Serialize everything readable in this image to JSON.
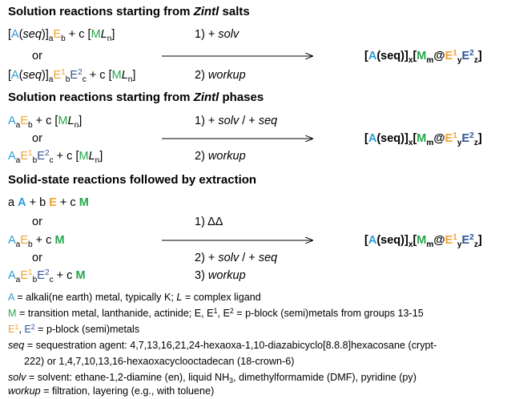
{
  "palette": {
    "blue": "#2f9bd7",
    "orange": "#f0a22e",
    "green": "#22a74a",
    "navy": "#2f5597",
    "black": "#000000"
  },
  "sections": [
    {
      "heading": [
        {
          "text": "Solution reactions starting from "
        },
        {
          "text": "Zintl",
          "format": "i"
        },
        {
          "text": " salts"
        }
      ],
      "reactants": [
        [
          {
            "text": "["
          },
          {
            "text": "A",
            "color": "blue"
          },
          {
            "text": "("
          },
          {
            "text": "seq",
            "format": "i"
          },
          {
            "text": ")]"
          },
          {
            "text": "a",
            "format": "sub"
          },
          {
            "text": "E",
            "color": "orange"
          },
          {
            "text": "b",
            "format": "sub"
          },
          {
            "text": " + c ["
          },
          {
            "text": "M",
            "color": "green"
          },
          {
            "text": "L",
            "format": "i"
          },
          {
            "text": "n",
            "format": "sub"
          },
          {
            "text": "]"
          }
        ],
        [
          {
            "text": "or"
          }
        ],
        [
          {
            "text": "["
          },
          {
            "text": "A",
            "color": "blue"
          },
          {
            "text": "("
          },
          {
            "text": "seq",
            "format": "i"
          },
          {
            "text": ")]"
          },
          {
            "text": "a",
            "format": "sub"
          },
          {
            "text": "E",
            "color": "orange"
          },
          {
            "text": "1",
            "format": "sup",
            "color": "orange"
          },
          {
            "text": "b",
            "format": "sub"
          },
          {
            "text": "E",
            "color": "navy"
          },
          {
            "text": "2",
            "format": "sup",
            "color": "navy"
          },
          {
            "text": "c",
            "format": "sub"
          },
          {
            "text": " + c ["
          },
          {
            "text": "M",
            "color": "green"
          },
          {
            "text": "L",
            "format": "i"
          },
          {
            "text": "n",
            "format": "sub"
          },
          {
            "text": "]"
          }
        ]
      ],
      "steps": [
        [
          {
            "text": "1) + "
          },
          {
            "text": "solv",
            "format": "i"
          }
        ],
        [
          {
            "text": "2) "
          },
          {
            "text": "workup",
            "format": "i"
          }
        ]
      ],
      "product": [
        {
          "text": "["
        },
        {
          "text": "A",
          "color": "blue"
        },
        {
          "text": "(seq)]"
        },
        {
          "text": "x",
          "format": "sub"
        },
        {
          "text": "["
        },
        {
          "text": "M",
          "color": "green"
        },
        {
          "text": "m",
          "format": "sub"
        },
        {
          "text": "@"
        },
        {
          "text": "E",
          "color": "orange"
        },
        {
          "text": "1",
          "format": "sup",
          "color": "orange"
        },
        {
          "text": "y",
          "format": "sub"
        },
        {
          "text": "E",
          "color": "navy"
        },
        {
          "text": "2",
          "format": "sup",
          "color": "navy"
        },
        {
          "text": "z",
          "format": "sub"
        },
        {
          "text": "]"
        }
      ]
    },
    {
      "heading": [
        {
          "text": "Solution reactions starting from "
        },
        {
          "text": "Zintl",
          "format": "i"
        },
        {
          "text": " phases"
        }
      ],
      "reactants": [
        [
          {
            "text": "A",
            "color": "blue"
          },
          {
            "text": "a",
            "format": "sub"
          },
          {
            "text": "E",
            "color": "orange"
          },
          {
            "text": "b",
            "format": "sub"
          },
          {
            "text": " + c ["
          },
          {
            "text": "M",
            "color": "green"
          },
          {
            "text": "L",
            "format": "i"
          },
          {
            "text": "n",
            "format": "sub"
          },
          {
            "text": "]"
          }
        ],
        [
          {
            "text": "or"
          }
        ],
        [
          {
            "text": "A",
            "color": "blue"
          },
          {
            "text": "a",
            "format": "sub"
          },
          {
            "text": "E",
            "color": "orange"
          },
          {
            "text": "1",
            "format": "sup",
            "color": "orange"
          },
          {
            "text": "b",
            "format": "sub"
          },
          {
            "text": "E",
            "color": "navy"
          },
          {
            "text": "2",
            "format": "sup",
            "color": "navy"
          },
          {
            "text": "c",
            "format": "sub"
          },
          {
            "text": " + c ["
          },
          {
            "text": "M",
            "color": "green"
          },
          {
            "text": "L",
            "format": "i"
          },
          {
            "text": "n",
            "format": "sub"
          },
          {
            "text": "]"
          }
        ]
      ],
      "steps": [
        [
          {
            "text": "1) + "
          },
          {
            "text": "solv",
            "format": "i"
          },
          {
            "text": " / + "
          },
          {
            "text": "seq",
            "format": "i"
          }
        ],
        [
          {
            "text": "2) "
          },
          {
            "text": "workup",
            "format": "i"
          }
        ]
      ],
      "product": [
        {
          "text": "["
        },
        {
          "text": "A",
          "color": "blue"
        },
        {
          "text": "(seq)]"
        },
        {
          "text": "x",
          "format": "sub"
        },
        {
          "text": "["
        },
        {
          "text": "M",
          "color": "green"
        },
        {
          "text": "m",
          "format": "sub"
        },
        {
          "text": "@"
        },
        {
          "text": "E",
          "color": "orange"
        },
        {
          "text": "1",
          "format": "sup",
          "color": "orange"
        },
        {
          "text": "y",
          "format": "sub"
        },
        {
          "text": "E",
          "color": "navy"
        },
        {
          "text": "2",
          "format": "sup",
          "color": "navy"
        },
        {
          "text": "z",
          "format": "sub"
        },
        {
          "text": "]"
        }
      ]
    },
    {
      "heading": [
        {
          "text": "Solid-state reactions followed by extraction"
        }
      ],
      "reactants": [
        [
          {
            "text": "a "
          },
          {
            "text": "A",
            "color": "blue",
            "format": "b"
          },
          {
            "text": " + b "
          },
          {
            "text": "E",
            "color": "orange",
            "format": "b"
          },
          {
            "text": " + c "
          },
          {
            "text": "M",
            "color": "green",
            "format": "b"
          }
        ],
        [
          {
            "text": "or"
          }
        ],
        [
          {
            "text": "A",
            "color": "blue"
          },
          {
            "text": "a",
            "format": "sub"
          },
          {
            "text": "E",
            "color": "orange"
          },
          {
            "text": "b",
            "format": "sub"
          },
          {
            "text": " + c "
          },
          {
            "text": "M",
            "color": "green",
            "format": "b"
          }
        ],
        [
          {
            "text": "or"
          }
        ],
        [
          {
            "text": "A",
            "color": "blue"
          },
          {
            "text": "a",
            "format": "sub"
          },
          {
            "text": "E",
            "color": "orange"
          },
          {
            "text": "1",
            "format": "sup",
            "color": "orange"
          },
          {
            "text": "b",
            "format": "sub"
          },
          {
            "text": "E",
            "color": "navy"
          },
          {
            "text": "2",
            "format": "sup",
            "color": "navy"
          },
          {
            "text": "c",
            "format": "sub"
          },
          {
            "text": " + c "
          },
          {
            "text": "M",
            "color": "green",
            "format": "b"
          }
        ]
      ],
      "steps": [
        [
          {
            "text": "1) ΔΔ"
          }
        ],
        [
          {
            "text": "2) + "
          },
          {
            "text": "solv",
            "format": "i"
          },
          {
            "text": " / + "
          },
          {
            "text": "seq",
            "format": "i"
          }
        ],
        [
          {
            "text": "3) "
          },
          {
            "text": "workup",
            "format": "i"
          }
        ]
      ],
      "product": [
        {
          "text": "["
        },
        {
          "text": "A",
          "color": "blue"
        },
        {
          "text": "(seq)]"
        },
        {
          "text": "x",
          "format": "sub"
        },
        {
          "text": "["
        },
        {
          "text": "M",
          "color": "green"
        },
        {
          "text": "m",
          "format": "sub"
        },
        {
          "text": "@"
        },
        {
          "text": "E",
          "color": "orange"
        },
        {
          "text": "1",
          "format": "sup",
          "color": "orange"
        },
        {
          "text": "y",
          "format": "sub"
        },
        {
          "text": "E",
          "color": "navy"
        },
        {
          "text": "2",
          "format": "sup",
          "color": "navy"
        },
        {
          "text": "z",
          "format": "sub"
        },
        {
          "text": "]"
        }
      ]
    }
  ],
  "footnotes": [
    [
      {
        "text": "A",
        "color": "blue"
      },
      {
        "text": " = alkali(ne earth) metal, typically K; "
      },
      {
        "text": "L",
        "format": "i"
      },
      {
        "text": " = complex ligand"
      }
    ],
    [
      {
        "text": "M",
        "color": "green"
      },
      {
        "text": " = transition metal, lanthanide, actinide; E, E"
      },
      {
        "text": "1",
        "format": "sup"
      },
      {
        "text": ", E"
      },
      {
        "text": "2",
        "format": "sup"
      },
      {
        "text": " = p-block (semi)metals from groups 13-15"
      }
    ],
    [
      {
        "text": "E",
        "color": "orange"
      },
      {
        "text": "1",
        "format": "sup",
        "color": "orange"
      },
      {
        "text": ", "
      },
      {
        "text": "E",
        "color": "navy"
      },
      {
        "text": "2",
        "format": "sup",
        "color": "navy"
      },
      {
        "text": " = p-block (semi)metals"
      }
    ],
    [
      {
        "text": "seq",
        "format": "i"
      },
      {
        "text": " = sequestration agent: 4,7,13,16,21,24-hexaoxa-1,10-diazabicyclo[8.8.8]hexacosane (crypt-"
      }
    ],
    [
      {
        "text": "222) or 1,4,7,10,13,16-hexaoxacyclooctadecan (18-crown-6)"
      }
    ],
    [
      {
        "text": "solv",
        "format": "i"
      },
      {
        "text": " = solvent: ethane-1,2-diamine (en), liquid NH"
      },
      {
        "text": "3",
        "format": "sub"
      },
      {
        "text": ", dimethylformamide (DMF), pyridine (py)"
      }
    ],
    [
      {
        "text": "workup",
        "format": "i"
      },
      {
        "text": " = filtration, layering (e.g., with toluene)"
      }
    ]
  ]
}
